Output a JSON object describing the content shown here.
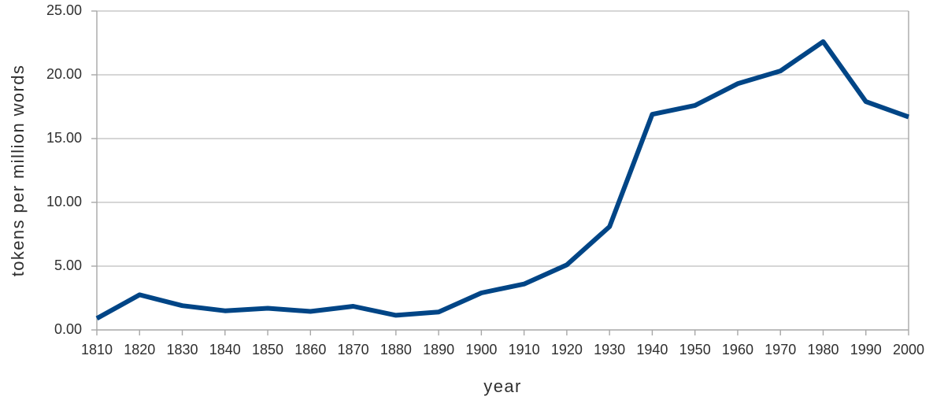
{
  "chart_data": {
    "type": "line",
    "title": "",
    "xlabel": "year",
    "ylabel": "tokens per million words",
    "x": [
      1810,
      1820,
      1830,
      1840,
      1850,
      1860,
      1870,
      1880,
      1890,
      1900,
      1910,
      1920,
      1930,
      1940,
      1950,
      1960,
      1970,
      1980,
      1990,
      2000
    ],
    "x_tick_labels": [
      "1810",
      "1820",
      "1830",
      "1840",
      "1850",
      "1860",
      "1870",
      "1880",
      "1890",
      "1900",
      "1910",
      "1920",
      "1930",
      "1940",
      "1950",
      "1960",
      "1970",
      "1980",
      "1990",
      "2000"
    ],
    "series": [
      {
        "values": [
          0.9,
          2.75,
          1.9,
          1.5,
          1.7,
          1.45,
          1.85,
          1.15,
          1.4,
          2.9,
          3.6,
          5.1,
          8.1,
          16.9,
          17.6,
          19.3,
          20.3,
          22.6,
          17.9,
          16.7
        ],
        "color": "#004586"
      }
    ],
    "ylim": [
      0,
      25
    ],
    "y_ticks": [
      0,
      5,
      10,
      15,
      20,
      25
    ],
    "y_tick_labels": [
      "0.00",
      "5.00",
      "10.00",
      "15.00",
      "20.00",
      "25.00"
    ],
    "grid": true,
    "legend": "none",
    "colors": {
      "line": "#004586",
      "grid": "#bdbdbd",
      "axis": "#a7a7a7",
      "text": "#2f2f2f"
    }
  }
}
